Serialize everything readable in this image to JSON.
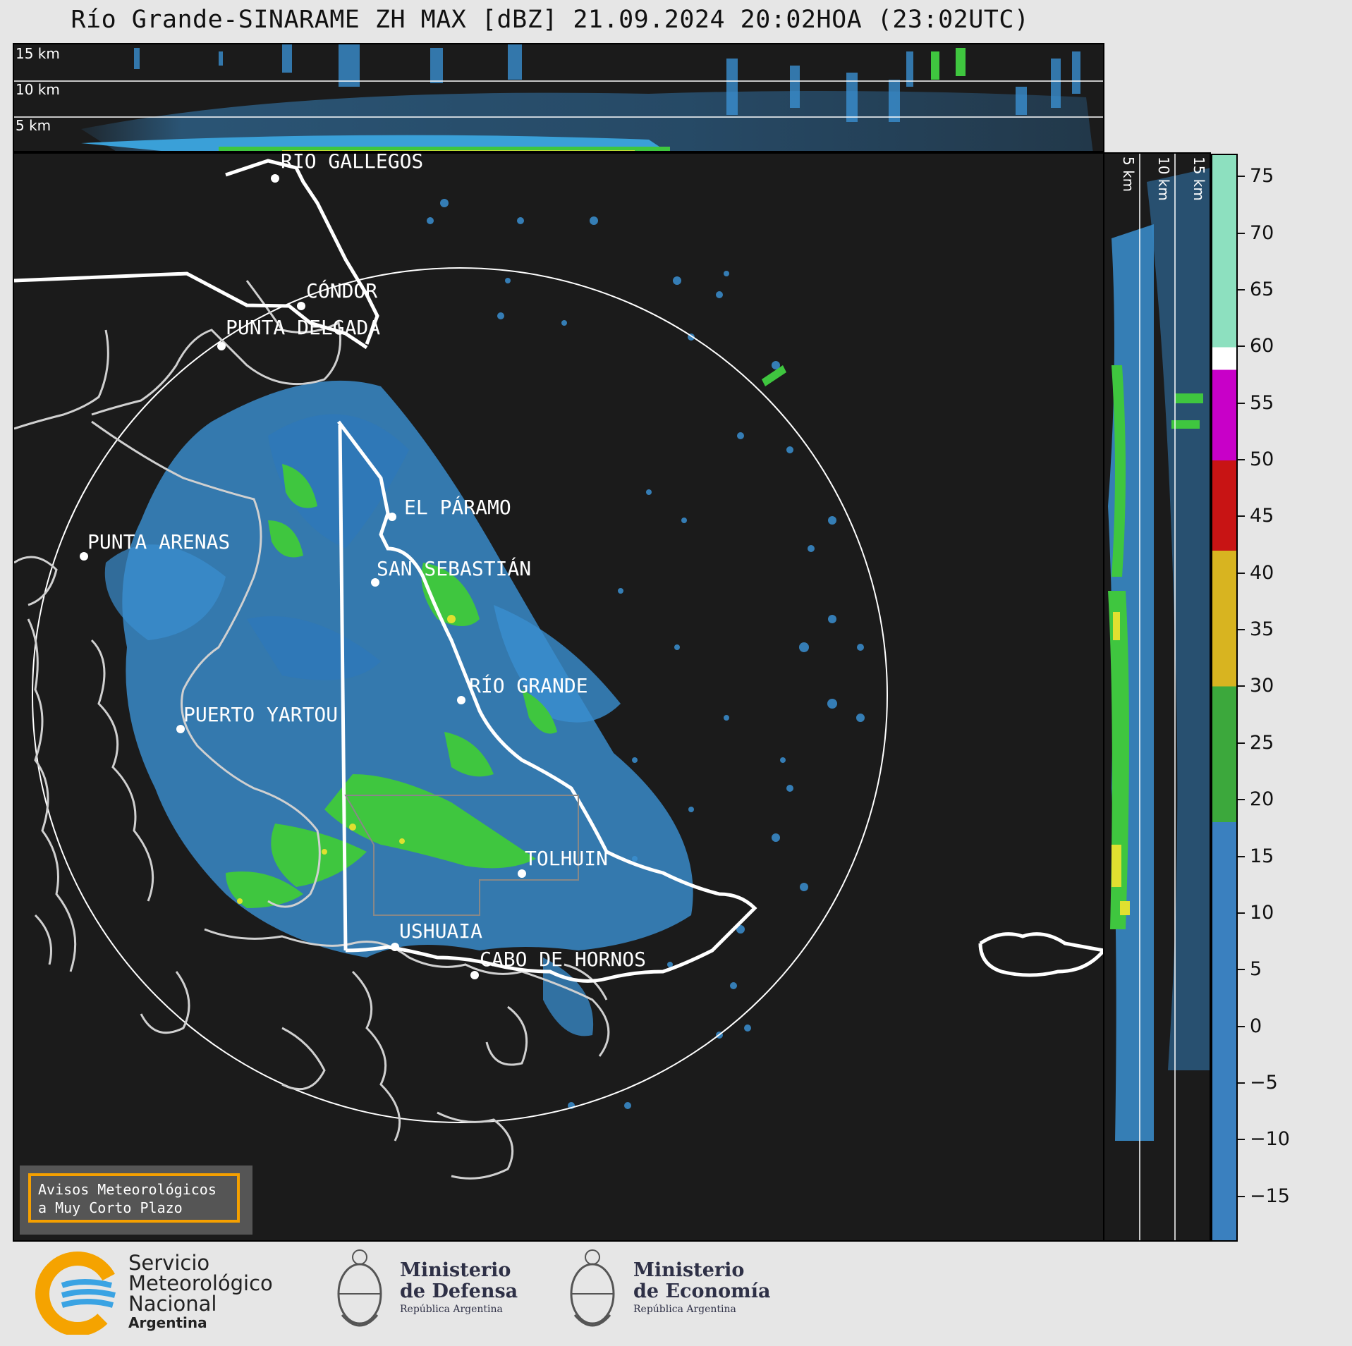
{
  "title": "Río Grande-SINARAME ZH MAX [dBZ] 21.09.2024 20:02HOA (23:02UTC)",
  "height_labels": {
    "top": [
      "15 km",
      "10 km",
      "5 km"
    ],
    "side": [
      "5 km",
      "10 km",
      "15 km"
    ]
  },
  "cities": [
    {
      "name": "RÍO GALLEGOS"
    },
    {
      "name": "CÓNDOR"
    },
    {
      "name": "PUNTA DELGADA"
    },
    {
      "name": "EL PÁRAMO"
    },
    {
      "name": "PUNTA ARENAS"
    },
    {
      "name": "SAN SEBASTIÁN"
    },
    {
      "name": "RÍO GRANDE"
    },
    {
      "name": "PUERTO YARTOU"
    },
    {
      "name": "TOLHUIN"
    },
    {
      "name": "USHUAIA"
    },
    {
      "name": "CABO DE HORNOS"
    }
  ],
  "colorbar": {
    "ticks": [
      "75",
      "70",
      "65",
      "60",
      "55",
      "50",
      "45",
      "40",
      "35",
      "30",
      "25",
      "20",
      "15",
      "10",
      "5",
      "0",
      "−5",
      "−10",
      "−15"
    ],
    "stops": [
      {
        "from": 60,
        "to": 77,
        "color": "#8de0bf"
      },
      {
        "from": 58,
        "to": 60,
        "color": "#ffffff"
      },
      {
        "from": 50,
        "to": 58,
        "color": "#c800c8"
      },
      {
        "from": 42,
        "to": 50,
        "color": "#c81414"
      },
      {
        "from": 30,
        "to": 42,
        "color": "#d8b420"
      },
      {
        "from": 18,
        "to": 30,
        "color": "#3ca83c"
      },
      {
        "from": -19,
        "to": 18,
        "color": "#3a80bf"
      }
    ]
  },
  "warning": {
    "line1": "Avisos Meteorológicos",
    "line2": "a Muy Corto Plazo"
  },
  "footer": {
    "smn": {
      "line1": "Servicio",
      "line2": "Meteorológico",
      "line3": "Nacional",
      "line4": "Argentina"
    },
    "defensa": {
      "line1": "Ministerio",
      "line2": "de Defensa",
      "line3": "República Argentina"
    },
    "economia": {
      "line1": "Ministerio",
      "line2": "de Economía",
      "line3": "República Argentina"
    }
  },
  "colors": {
    "background": "#1b1b1b",
    "light_echo": "#3a8fd0",
    "moderate_echo": "#3fc63f",
    "strong_echo": "#e0e030",
    "outline": "#ffffff",
    "smn_orange": "#f5a300",
    "smn_blue": "#3aa3e3"
  }
}
